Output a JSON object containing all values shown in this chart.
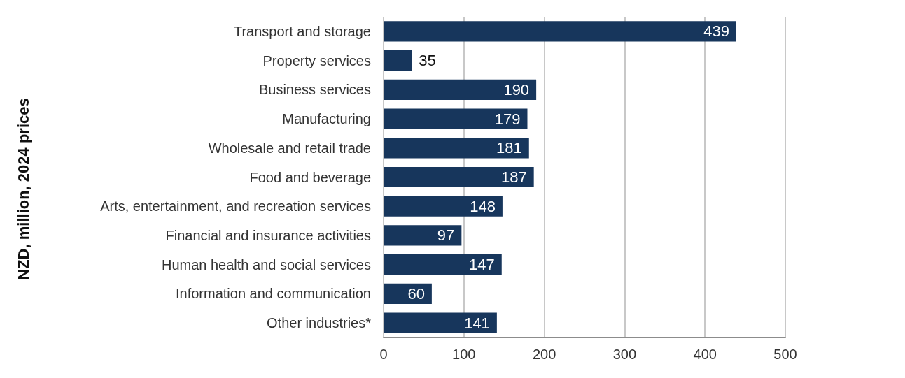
{
  "chart_data": {
    "type": "bar",
    "orientation": "horizontal",
    "ylabel": "NZD, million, 2024 prices",
    "categories": [
      "Transport and storage",
      "Property services",
      "Business services",
      "Manufacturing",
      "Wholesale and retail trade",
      "Food and beverage",
      "Arts, entertainment, and recreation services",
      "Financial and insurance activities",
      "Human health and social services",
      "Information and communication",
      "Other industries*"
    ],
    "values": [
      439,
      35,
      190,
      179,
      181,
      187,
      148,
      97,
      147,
      60,
      141
    ],
    "color": "#17365c",
    "xlim": [
      0,
      500
    ],
    "xticks": [
      0,
      100,
      200,
      300,
      400,
      500
    ],
    "grid": "x",
    "data_labels": true
  }
}
